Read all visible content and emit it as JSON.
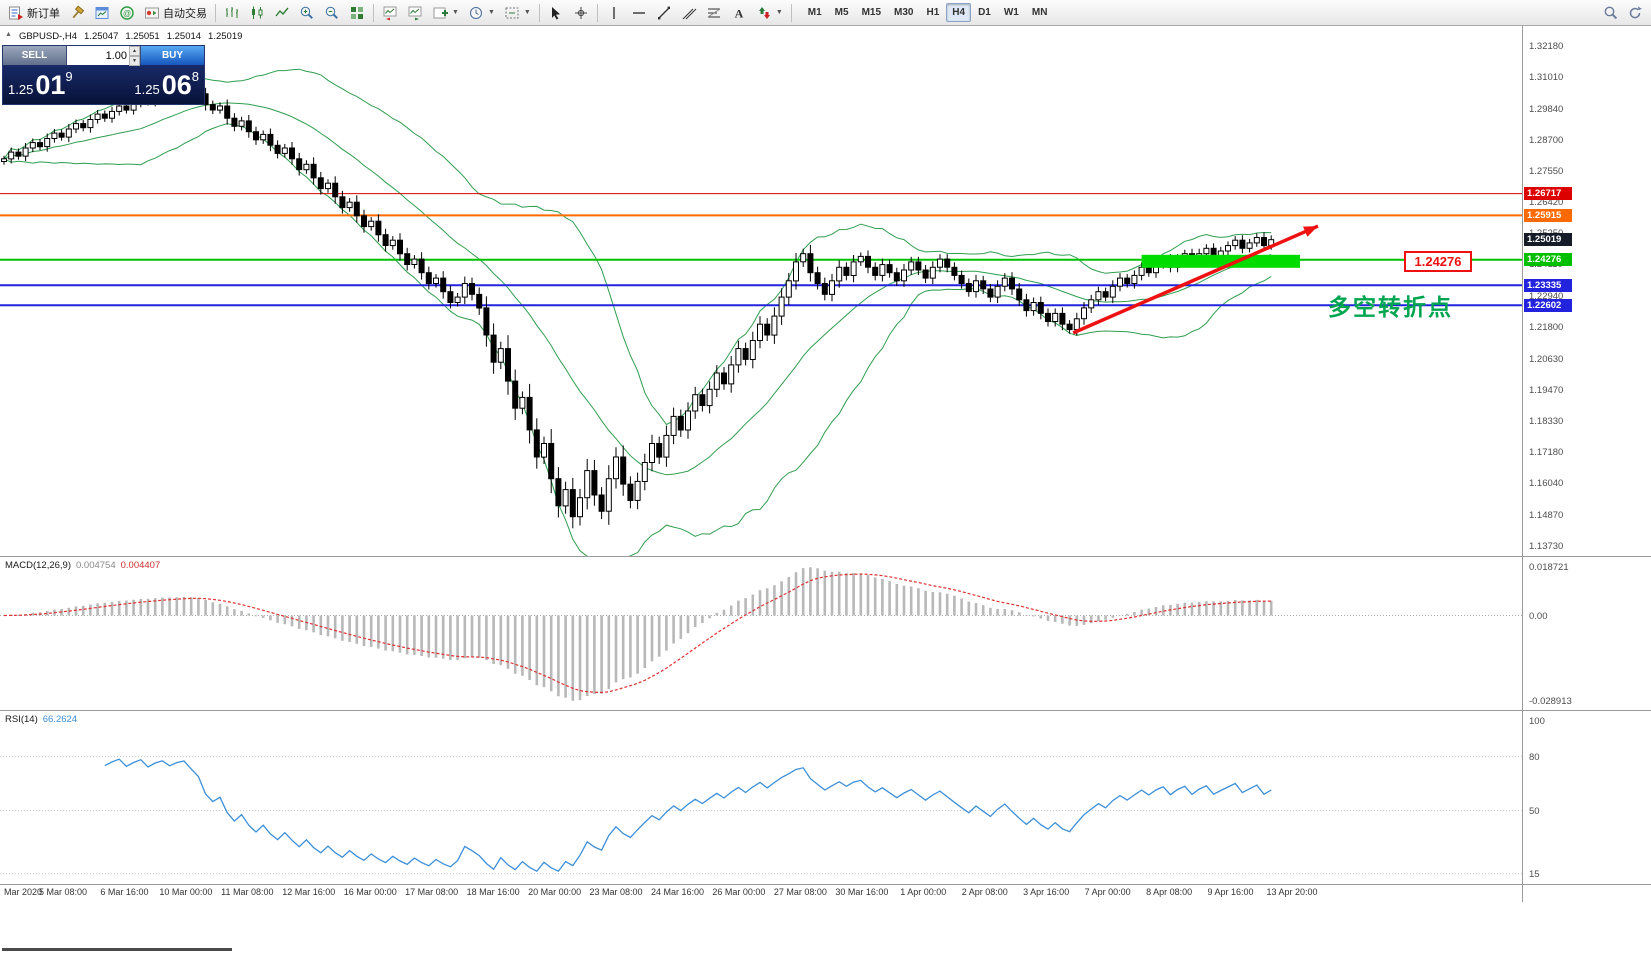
{
  "toolbar": {
    "new_order_label": "新订单",
    "autotrading_label": "自动交易",
    "timeframes": [
      "M1",
      "M5",
      "M15",
      "M30",
      "H1",
      "H4",
      "D1",
      "W1",
      "MN"
    ],
    "active_timeframe": "H4",
    "icon_names": [
      "new-order",
      "metaeditor-hammer",
      "market-watch",
      "navigator",
      "autotrading",
      "bar-chart-mode",
      "candlestick-mode",
      "line-chart-mode",
      "zoom-in",
      "zoom-out",
      "tile-windows",
      "step-back",
      "step-forward",
      "new-chart",
      "period-selector",
      "chart-shift",
      "cursor",
      "crosshair",
      "vertical-line",
      "horizontal-line",
      "trendline",
      "equidistant-channel",
      "fibonacci",
      "text-tool",
      "arrows-tool",
      "search",
      "refresh"
    ]
  },
  "ohlc_header": {
    "symbol": "GBPUSD-,H4",
    "open": "1.25047",
    "high": "1.25051",
    "low": "1.25014",
    "close": "1.25019"
  },
  "trade_panel": {
    "sell_label": "SELL",
    "buy_label": "BUY",
    "lot": "1.00",
    "sell_price_base": "1.25",
    "sell_price_pips": "01",
    "sell_price_pipette": "9",
    "buy_price_base": "1.25",
    "buy_price_pips": "06",
    "buy_price_pipette": "8"
  },
  "macd_panel": {
    "label": "MACD(12,26,9)",
    "value_main": "0.004754",
    "value_signal": "0.004407"
  },
  "rsi_panel": {
    "label": "RSI(14)",
    "value": "66.2624"
  },
  "chart_data": {
    "type": "candlestick",
    "symbol": "GBPUSD",
    "timeframe": "H4",
    "price_range": [
      1.1335,
      1.329
    ],
    "close": [
      1.28,
      1.2825,
      1.281,
      1.284,
      1.286,
      1.2845,
      1.2875,
      1.2895,
      1.288,
      1.291,
      1.293,
      1.2915,
      1.2945,
      1.2965,
      1.295,
      1.2975,
      1.2995,
      1.298,
      1.3005,
      1.3025,
      1.301,
      1.3035,
      1.305,
      1.304,
      1.306,
      1.307,
      1.3055,
      1.304,
      1.3,
      1.298,
      1.2995,
      1.295,
      1.292,
      1.294,
      1.29,
      1.287,
      1.289,
      1.285,
      1.282,
      1.284,
      1.28,
      1.276,
      1.278,
      1.273,
      1.269,
      1.271,
      1.266,
      1.262,
      1.264,
      1.259,
      1.255,
      1.257,
      1.252,
      1.248,
      1.25,
      1.245,
      1.241,
      1.243,
      1.238,
      1.234,
      1.236,
      1.231,
      1.227,
      1.229,
      1.234,
      1.23,
      1.225,
      1.215,
      1.205,
      1.21,
      1.198,
      1.188,
      1.192,
      1.18,
      1.17,
      1.175,
      1.162,
      1.152,
      1.158,
      1.148,
      1.155,
      1.165,
      1.156,
      1.15,
      1.162,
      1.17,
      1.16,
      1.154,
      1.161,
      1.168,
      1.175,
      1.17,
      1.178,
      1.185,
      1.18,
      1.187,
      1.193,
      1.189,
      1.195,
      1.201,
      1.197,
      1.204,
      1.21,
      1.206,
      1.213,
      1.219,
      1.215,
      1.222,
      1.229,
      1.235,
      1.242,
      1.245,
      1.238,
      1.234,
      1.23,
      1.235,
      1.24,
      1.237,
      1.242,
      1.244,
      1.24,
      1.237,
      1.241,
      1.238,
      1.235,
      1.239,
      1.242,
      1.239,
      1.236,
      1.24,
      1.243,
      1.24,
      1.237,
      1.234,
      1.231,
      1.235,
      1.232,
      1.229,
      1.233,
      1.236,
      1.232,
      1.228,
      1.224,
      1.227,
      1.223,
      1.22,
      1.223,
      1.219,
      1.217,
      1.221,
      1.225,
      1.228,
      1.231,
      1.229,
      1.233,
      1.236,
      1.234,
      1.237,
      1.24,
      1.238,
      1.241,
      1.243,
      1.24,
      1.243,
      1.245,
      1.242,
      1.245,
      1.247,
      1.244,
      1.246,
      1.248,
      1.25,
      1.247,
      1.249,
      1.251,
      1.248,
      1.25019
    ],
    "price_axis_labels": [
      "1.32180",
      "1.31010",
      "1.29840",
      "1.28700",
      "1.27550",
      "1.26420",
      "1.25250",
      "1.24110",
      "1.22940",
      "1.21800",
      "1.20630",
      "1.19470",
      "1.18330",
      "1.17180",
      "1.16040",
      "1.14870",
      "1.13730"
    ],
    "time_axis_labels": [
      "Mar 2020",
      "5 Mar 08:00",
      "6 Mar 16:00",
      "10 Mar 00:00",
      "11 Mar 08:00",
      "12 Mar 16:00",
      "16 Mar 00:00",
      "17 Mar 08:00",
      "18 Mar 16:00",
      "20 Mar 00:00",
      "23 Mar 08:00",
      "24 Mar 16:00",
      "26 Mar 00:00",
      "27 Mar 08:00",
      "30 Mar 16:00",
      "1 Apr 00:00",
      "2 Apr 08:00",
      "3 Apr 16:00",
      "7 Apr 00:00",
      "8 Apr 08:00",
      "9 Apr 16:00",
      "13 Apr 20:00"
    ],
    "macd_axis_labels": [
      "0.018721",
      "0.00",
      "-0.028913"
    ],
    "rsi_axis_labels": [
      "100",
      "80",
      "50",
      "15"
    ],
    "hlines": [
      {
        "price": 1.26717,
        "label": "1.26717",
        "color": "#dd0000",
        "width": 1
      },
      {
        "price": 1.25915,
        "label": "1.25915",
        "color": "#ff6a00",
        "width": 2
      },
      {
        "price": 1.24276,
        "label": "1.24276",
        "color": "#00c000",
        "width": 2
      },
      {
        "price": 1.23335,
        "label": "1.23335",
        "color": "#2323dd",
        "width": 2
      },
      {
        "price": 1.22602,
        "label": "1.22602",
        "color": "#2323dd",
        "width": 2
      }
    ],
    "current_price": {
      "value": 1.25019,
      "label": "1.25019",
      "tag_color": "#161b28"
    },
    "indicators": {
      "bollinger": {
        "period": 20,
        "deviation": 2,
        "color": "#2f9e4f"
      },
      "macd": {
        "fast": 12,
        "slow": 26,
        "signal": 9,
        "histogram_color": "#b8b8b8",
        "signal_color": "#e03030"
      },
      "rsi": {
        "period": 14,
        "color": "#3c8fd9"
      }
    },
    "annotations": {
      "support_zone": {
        "from_index": 158,
        "to_index": 180,
        "price_top": 1.2446,
        "price_bottom": 1.2398,
        "color": "#00dc00"
      },
      "trend_arrow": {
        "from_index": 148.5,
        "from_price": 1.2158,
        "to_index": 182.5,
        "to_price": 1.2552,
        "color": "#ee1111"
      },
      "turning_point_text": {
        "text": "多空转折点",
        "color": "#00a550"
      },
      "price_callout": {
        "text": "1.24276",
        "color": "#ee1111"
      }
    }
  }
}
